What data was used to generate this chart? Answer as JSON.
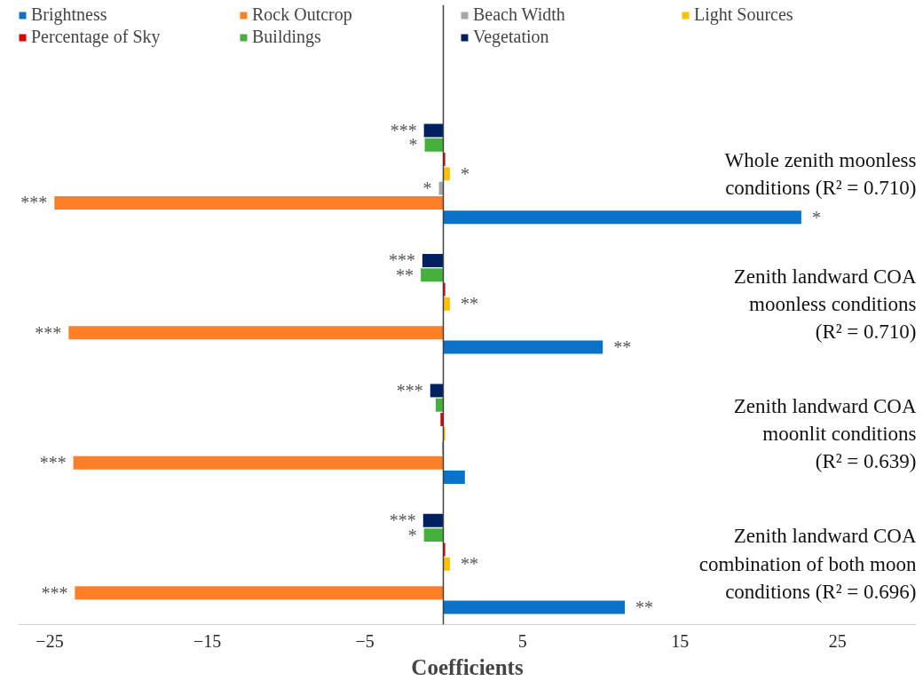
{
  "chart_data": {
    "type": "bar",
    "orientation": "horizontal",
    "xlabel": "Coefficients",
    "categories": [
      "Whole zenith moonless conditions (R² = 0.710)",
      "Zenith landward COA moonless conditions (R² = 0.710)",
      "Zenith landward COA moonlit conditions (R² = 0.639)",
      "Zenith landward COA combination of both moon conditions (R² = 0.696)"
    ],
    "series": [
      {
        "name": "Brightness",
        "color": "#0b72c9",
        "values": [
          22.7,
          10.1,
          1.35,
          11.5
        ],
        "value_labels": [
          "*",
          "**",
          null,
          "**"
        ]
      },
      {
        "name": "Rock Outcrop",
        "color": "#ff7f27",
        "values": [
          -24.7,
          -23.8,
          -23.5,
          -23.4
        ],
        "value_labels": [
          "***",
          "***",
          "***",
          "***"
        ]
      },
      {
        "name": "Beach Width",
        "color": "#a6a6a6",
        "values": [
          -0.3,
          -0.05,
          -0.1,
          -0.05
        ],
        "value_labels": [
          "*",
          null,
          null,
          null
        ]
      },
      {
        "name": "Light Sources",
        "color": "#ffc000",
        "values": [
          0.4,
          0.4,
          0.1,
          0.4
        ],
        "value_labels": [
          "*",
          "**",
          null,
          "**"
        ]
      },
      {
        "name": "Percentage of Sky",
        "color": "#e00000",
        "values": [
          0.1,
          0.1,
          -0.2,
          0.1
        ]
      },
      {
        "name": "Buildings",
        "color": "#45b03c",
        "values": [
          -1.2,
          -1.45,
          -0.5,
          -1.25
        ],
        "value_labels": [
          "*",
          "**",
          null,
          "*"
        ]
      },
      {
        "name": "Vegetation",
        "color": "#002060",
        "values": [
          -1.25,
          -1.35,
          -0.85,
          -1.3
        ],
        "value_labels": [
          "***",
          "***",
          "***",
          "***"
        ]
      }
    ],
    "xlim": [
      -27,
      30
    ],
    "xticks": [
      -25,
      -15,
      -5,
      5,
      15,
      25
    ],
    "legend": "top"
  }
}
